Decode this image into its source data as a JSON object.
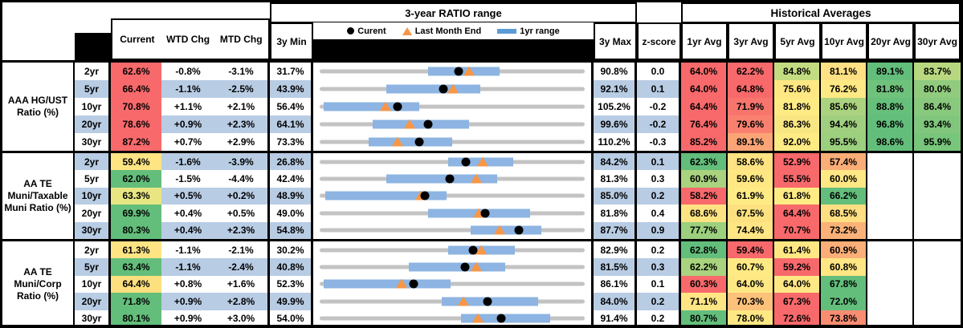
{
  "header": {
    "range_title": "3-year RATIO range",
    "hist_title": "Historical Averages",
    "cols": {
      "current": "Current",
      "wtd": "WTD Chg",
      "mtd": "MTD Chg",
      "min": "3y Min",
      "max": "3y Max",
      "z": "z-score"
    },
    "avg_cols": [
      "1yr Avg",
      "3yr Avg",
      "5yr Avg",
      "10yr Avg",
      "20yr Avg",
      "30yr Avg"
    ],
    "legend": {
      "current": "Curent",
      "last_month": "Last Month End",
      "range": "1yr range"
    }
  },
  "colors": {
    "banding": "#B8CCE4",
    "bar": "#8DB4E2",
    "track": "#C3C3C3",
    "triangle": "#F79646",
    "dot": "#000000",
    "legend_dash": "#5B9BD5"
  },
  "chart_data": {
    "type": "table",
    "description": "Muni ratio table with 3-year range strip plots; bar/dot/tri are fractions of the 3yMin-3yMax span",
    "groups": [
      {
        "label": "AAA HG/UST Ratio (%)",
        "rows": [
          {
            "tenor": "2yr",
            "current": "62.6%",
            "current_bg": "#F8696B",
            "wtd": "-0.8%",
            "mtd": "-3.1%",
            "min": "31.7%",
            "max": "90.8%",
            "z": "0.0",
            "bar": [
              0.41,
              0.68
            ],
            "dot": 0.523,
            "tri": 0.565,
            "avgs": [
              [
                "64.0%",
                "#F8696B"
              ],
              [
                "62.2%",
                "#F8696B"
              ],
              [
                "84.8%",
                "#C3DB81"
              ],
              [
                "81.1%",
                "#FFE083"
              ],
              [
                "89.1%",
                "#63BE7B"
              ],
              [
                "83.7%",
                "#B8D880"
              ]
            ]
          },
          {
            "tenor": "5yr",
            "current": "66.4%",
            "current_bg": "#F8696B",
            "wtd": "-1.1%",
            "mtd": "-2.5%",
            "min": "43.9%",
            "max": "92.1%",
            "z": "0.1",
            "bar": [
              0.25,
              0.605
            ],
            "dot": 0.467,
            "tri": 0.502,
            "avgs": [
              [
                "64.0%",
                "#F8696B"
              ],
              [
                "64.8%",
                "#F8696B"
              ],
              [
                "75.6%",
                "#FFE883"
              ],
              [
                "76.2%",
                "#FFE984"
              ],
              [
                "81.8%",
                "#6FC27C"
              ],
              [
                "80.0%",
                "#90CB7E"
              ]
            ]
          },
          {
            "tenor": "10yr",
            "current": "70.8%",
            "current_bg": "#F8696B",
            "wtd": "+1.1%",
            "mtd": "+2.1%",
            "min": "56.4%",
            "max": "105.2%",
            "z": "-0.2",
            "bar": [
              0.015,
              0.375
            ],
            "dot": 0.295,
            "tri": 0.247,
            "avgs": [
              [
                "64.4%",
                "#F8696B"
              ],
              [
                "71.9%",
                "#F8756E"
              ],
              [
                "81.8%",
                "#FFEB84"
              ],
              [
                "85.6%",
                "#ABD37F"
              ],
              [
                "88.8%",
                "#66BF7B"
              ],
              [
                "86.4%",
                "#89C97D"
              ]
            ]
          },
          {
            "tenor": "20yr",
            "current": "78.6%",
            "current_bg": "#F8696B",
            "wtd": "+0.9%",
            "mtd": "+2.3%",
            "min": "64.1%",
            "max": "99.6%",
            "z": "-0.2",
            "bar": [
              0.2,
              0.565
            ],
            "dot": 0.408,
            "tri": 0.338,
            "avgs": [
              [
                "76.4%",
                "#F8696B"
              ],
              [
                "79.6%",
                "#F9806F"
              ],
              [
                "86.3%",
                "#F8E683"
              ],
              [
                "94.4%",
                "#A0D07F"
              ],
              [
                "96.8%",
                "#63BE7B"
              ],
              [
                "93.4%",
                "#80C77D"
              ]
            ]
          },
          {
            "tenor": "30yr",
            "current": "87.2%",
            "current_bg": "#F8696B",
            "wtd": "+0.7%",
            "mtd": "+2.9%",
            "min": "73.3%",
            "max": "110.2%",
            "z": "-0.3",
            "bar": [
              0.185,
              0.5
            ],
            "dot": 0.377,
            "tri": 0.295,
            "avgs": [
              [
                "85.2%",
                "#F8696B"
              ],
              [
                "89.1%",
                "#FBA476"
              ],
              [
                "92.0%",
                "#FFEB84"
              ],
              [
                "95.5%",
                "#9CCF7E"
              ],
              [
                "98.6%",
                "#63BE7B"
              ],
              [
                "95.9%",
                "#78C57C"
              ]
            ]
          }
        ]
      },
      {
        "label": "AA TE Muni/Taxable Muni Ratio (%)",
        "rows": [
          {
            "tenor": "2yr",
            "current": "59.4%",
            "current_bg": "#FFE484",
            "wtd": "-1.6%",
            "mtd": "-3.9%",
            "min": "26.8%",
            "max": "84.2%",
            "z": "0.1",
            "bar": [
              0.485,
              0.73
            ],
            "dot": 0.553,
            "tri": 0.615,
            "avgs": [
              [
                "62.3%",
                "#63BE7B"
              ],
              [
                "58.6%",
                "#FFE383"
              ],
              [
                "52.9%",
                "#F8696B"
              ],
              [
                "57.4%",
                "#FBAD78"
              ],
              null,
              null
            ]
          },
          {
            "tenor": "5yr",
            "current": "62.0%",
            "current_bg": "#63BE7B",
            "wtd": "-1.5%",
            "mtd": "-4.4%",
            "min": "42.4%",
            "max": "81.3%",
            "z": "0.3",
            "bar": [
              0.25,
              0.67
            ],
            "dot": 0.49,
            "tri": 0.592,
            "avgs": [
              [
                "60.9%",
                "#A9D37F"
              ],
              [
                "59.6%",
                "#FFE884"
              ],
              [
                "55.5%",
                "#F8696B"
              ],
              [
                "60.0%",
                "#FFE884"
              ],
              null,
              null
            ]
          },
          {
            "tenor": "10yr",
            "current": "63.3%",
            "current_bg": "#E8E683",
            "wtd": "+0.5%",
            "mtd": "+0.2%",
            "min": "48.9%",
            "max": "85.0%",
            "z": "0.2",
            "bar": [
              0.02,
              0.478
            ],
            "dot": 0.397,
            "tri": 0.383,
            "avgs": [
              [
                "58.2%",
                "#F8696B"
              ],
              [
                "61.9%",
                "#FFEB84"
              ],
              [
                "61.8%",
                "#FFEB84"
              ],
              [
                "66.2%",
                "#63BE7B"
              ],
              null,
              null
            ]
          },
          {
            "tenor": "20yr",
            "current": "69.9%",
            "current_bg": "#63BE7B",
            "wtd": "+0.4%",
            "mtd": "+0.5%",
            "min": "49.0%",
            "max": "81.8%",
            "z": "0.4",
            "bar": [
              0.41,
              0.795
            ],
            "dot": 0.625,
            "tri": 0.6,
            "avgs": [
              [
                "68.6%",
                "#FFE383"
              ],
              [
                "67.5%",
                "#FDE180"
              ],
              [
                "64.4%",
                "#F8696B"
              ],
              [
                "68.5%",
                "#FFDF82"
              ],
              null,
              null
            ]
          },
          {
            "tenor": "30yr",
            "current": "80.3%",
            "current_bg": "#63BE7B",
            "wtd": "+0.4%",
            "mtd": "+2.3%",
            "min": "54.8%",
            "max": "87.7%",
            "z": "0.9",
            "bar": [
              0.57,
              0.835
            ],
            "dot": 0.75,
            "tri": 0.68,
            "avgs": [
              [
                "77.7%",
                "#9CCF7E"
              ],
              [
                "74.4%",
                "#FFE584"
              ],
              [
                "70.7%",
                "#F8696B"
              ],
              [
                "73.2%",
                "#FBB278"
              ],
              null,
              null
            ]
          }
        ]
      },
      {
        "label": "AA TE Muni/Corp Ratio (%)",
        "rows": [
          {
            "tenor": "2yr",
            "current": "61.3%",
            "current_bg": "#FFE484",
            "wtd": "-1.1%",
            "mtd": "-2.1%",
            "min": "30.2%",
            "max": "82.9%",
            "z": "0.2",
            "bar": [
              0.485,
              0.735
            ],
            "dot": 0.578,
            "tri": 0.61,
            "avgs": [
              [
                "62.8%",
                "#63BE7B"
              ],
              [
                "59.4%",
                "#F8696B"
              ],
              [
                "61.4%",
                "#FFE884"
              ],
              [
                "60.9%",
                "#FBAE78"
              ],
              null,
              null
            ]
          },
          {
            "tenor": "5yr",
            "current": "63.4%",
            "current_bg": "#63BE7B",
            "wtd": "-1.1%",
            "mtd": "-2.4%",
            "min": "40.8%",
            "max": "81.5%",
            "z": "0.3",
            "bar": [
              0.335,
              0.7
            ],
            "dot": 0.547,
            "tri": 0.592,
            "avgs": [
              [
                "62.2%",
                "#A9D37F"
              ],
              [
                "60.7%",
                "#FFE984"
              ],
              [
                "59.2%",
                "#F8696B"
              ],
              [
                "60.8%",
                "#FFE684"
              ],
              null,
              null
            ]
          },
          {
            "tenor": "10yr",
            "current": "64.4%",
            "current_bg": "#FCDF7E",
            "wtd": "+0.8%",
            "mtd": "+1.6%",
            "min": "52.3%",
            "max": "86.1%",
            "z": "0.1",
            "bar": [
              0.015,
              0.495
            ],
            "dot": 0.355,
            "tri": 0.31,
            "avgs": [
              [
                "60.3%",
                "#F8696B"
              ],
              [
                "64.0%",
                "#FFE884"
              ],
              [
                "64.0%",
                "#FFE884"
              ],
              [
                "67.8%",
                "#63BE7B"
              ],
              null,
              null
            ]
          },
          {
            "tenor": "20yr",
            "current": "71.8%",
            "current_bg": "#63BE7B",
            "wtd": "+0.9%",
            "mtd": "+2.8%",
            "min": "49.9%",
            "max": "84.0%",
            "z": "0.2",
            "bar": [
              0.46,
              0.825
            ],
            "dot": 0.632,
            "tri": 0.543,
            "avgs": [
              [
                "71.1%",
                "#FFE684"
              ],
              [
                "70.3%",
                "#FCC17B"
              ],
              [
                "67.3%",
                "#F8696B"
              ],
              [
                "72.0%",
                "#63BE7B"
              ],
              null,
              null
            ]
          },
          {
            "tenor": "30yr",
            "current": "80.1%",
            "current_bg": "#63BE7B",
            "wtd": "+0.9%",
            "mtd": "+3.0%",
            "min": "54.0%",
            "max": "91.4%",
            "z": "0.2",
            "bar": [
              0.533,
              0.87
            ],
            "dot": 0.685,
            "tri": 0.598,
            "avgs": [
              [
                "80.7%",
                "#63BE7B"
              ],
              [
                "78.0%",
                "#FFE884"
              ],
              [
                "72.6%",
                "#F8696B"
              ],
              [
                "73.8%",
                "#F98D72"
              ],
              null,
              null
            ]
          }
        ]
      }
    ]
  }
}
